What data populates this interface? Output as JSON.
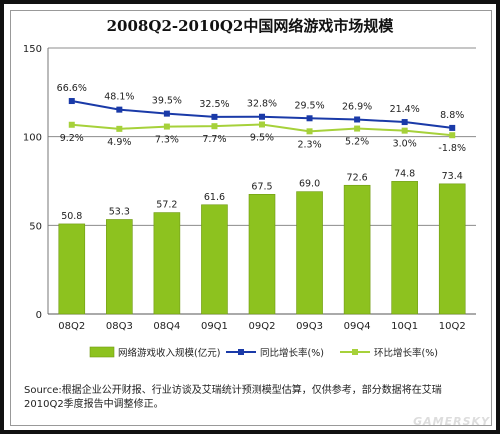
{
  "title": "2008Q2-2010Q2中国网络游戏市场规模",
  "source_text": "Source:根据企业公开财报、行业访谈及艾瑞统计预测模型估算，仅供参考，部分数据将在艾瑞2010Q2季度报告中调整修正。",
  "watermark": "GAMERSKY",
  "chart_data": {
    "type": "bar",
    "categories": [
      "08Q2",
      "08Q3",
      "08Q4",
      "09Q1",
      "09Q2",
      "09Q3",
      "09Q4",
      "10Q1",
      "10Q2"
    ],
    "ylim": [
      0,
      150
    ],
    "yticks": [
      0,
      50,
      100,
      150
    ],
    "legend_position": "bottom",
    "series": [
      {
        "name": "网络游戏收入规模(亿元)",
        "kind": "bar",
        "values": [
          50.8,
          53.3,
          57.2,
          61.6,
          67.5,
          69.0,
          72.6,
          74.8,
          73.4
        ],
        "labels": [
          "50.8",
          "53.3",
          "57.2",
          "61.6",
          "67.5",
          "69.0",
          "72.6",
          "74.8",
          "73.4"
        ],
        "color": "#8dc21f"
      },
      {
        "name": "同比增长率(%)",
        "kind": "line",
        "values": [
          66.6,
          48.1,
          39.5,
          32.5,
          32.8,
          29.5,
          26.9,
          21.4,
          8.8
        ],
        "labels": [
          "66.6%",
          "48.1%",
          "39.5%",
          "32.5%",
          "32.8%",
          "29.5%",
          "26.9%",
          "21.4%",
          "8.8%"
        ],
        "color": "#1a3aa8"
      },
      {
        "name": "环比增长率(%)",
        "kind": "line",
        "values": [
          9.2,
          4.9,
          7.3,
          7.7,
          9.5,
          2.3,
          5.2,
          3.0,
          -1.8
        ],
        "labels": [
          "9.2%",
          "4.9%",
          "7.3%",
          "7.7%",
          "9.5%",
          "2.3%",
          "5.2%",
          "3.0%",
          "-1.8%"
        ],
        "color": "#a6d13a"
      }
    ]
  }
}
